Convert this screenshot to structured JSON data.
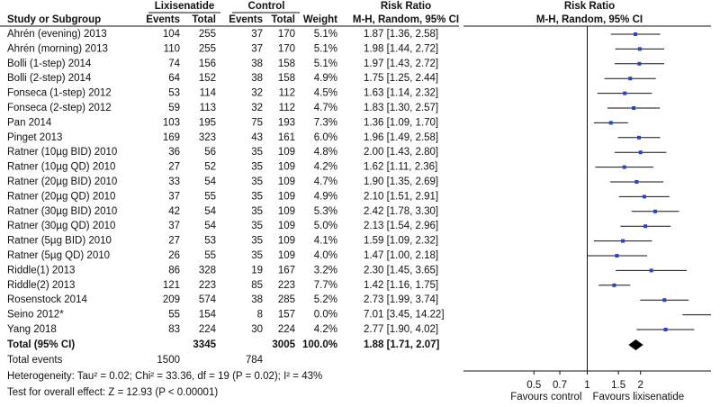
{
  "chart_data": {
    "type": "forest",
    "header_study": "Study or Subgroup",
    "group_labels": [
      "Lixisenatide",
      "Control"
    ],
    "col_labels": [
      "Events",
      "Total",
      "Events",
      "Total",
      "Weight"
    ],
    "effect_title": "Risk Ratio",
    "effect_method": "M-H, Random, 95% CI",
    "study": [
      "Ahrén (evening) 2013",
      "Ahrén (morning) 2013",
      "Bolli (1-step) 2014",
      "Bolli (2-step) 2014",
      "Fonseca (1-step) 2012",
      "Fonseca (2-step) 2012",
      "Pan 2014",
      "Pinget  2013",
      "Ratner (10µg BID) 2010",
      "Ratner (10µg QD) 2010",
      "Ratner (20µg BID) 2010",
      "Ratner (20µg QD) 2010",
      "Ratner (30µg BID) 2010",
      "Ratner (30µg QD) 2010",
      "Ratner (5µg BID) 2010",
      "Ratner (5µg QD) 2010",
      "Riddle(1) 2013",
      "Riddle(2) 2013",
      "Rosenstock 2014",
      "Seino 2012*",
      "Yang 2018"
    ],
    "lix_events": [
      104,
      110,
      74,
      64,
      53,
      59,
      103,
      169,
      36,
      27,
      33,
      37,
      42,
      37,
      27,
      26,
      86,
      121,
      209,
      55,
      83
    ],
    "lix_total": [
      255,
      255,
      156,
      152,
      114,
      113,
      195,
      323,
      56,
      52,
      54,
      55,
      54,
      54,
      53,
      55,
      328,
      223,
      574,
      154,
      224
    ],
    "ctrl_events": [
      37,
      37,
      38,
      38,
      32,
      32,
      75,
      43,
      35,
      35,
      35,
      35,
      35,
      35,
      35,
      35,
      19,
      85,
      38,
      8,
      30
    ],
    "ctrl_total": [
      170,
      170,
      158,
      158,
      112,
      112,
      193,
      161,
      109,
      109,
      109,
      109,
      109,
      109,
      109,
      109,
      167,
      223,
      285,
      157,
      224
    ],
    "weight": [
      "5.1%",
      "5.1%",
      "5.1%",
      "4.9%",
      "4.5%",
      "4.7%",
      "7.3%",
      "6.0%",
      "4.8%",
      "4.2%",
      "4.7%",
      "4.9%",
      "5.3%",
      "5.0%",
      "4.1%",
      "4.0%",
      "3.2%",
      "7.7%",
      "5.2%",
      "0.0%",
      "4.2%"
    ],
    "rr": [
      1.87,
      1.98,
      1.97,
      1.75,
      1.63,
      1.83,
      1.36,
      1.96,
      2.0,
      1.62,
      1.9,
      2.1,
      2.42,
      2.13,
      1.59,
      1.47,
      2.3,
      1.42,
      2.73,
      7.01,
      2.77
    ],
    "ci_low": [
      1.36,
      1.44,
      1.43,
      1.25,
      1.14,
      1.3,
      1.09,
      1.49,
      1.43,
      1.11,
      1.35,
      1.51,
      1.78,
      1.54,
      1.09,
      1.0,
      1.45,
      1.16,
      1.99,
      3.45,
      1.9
    ],
    "ci_high": [
      2.58,
      2.72,
      2.72,
      2.44,
      2.32,
      2.57,
      1.7,
      2.58,
      2.8,
      2.36,
      2.69,
      2.91,
      3.3,
      2.96,
      2.32,
      2.18,
      3.65,
      1.75,
      3.74,
      14.22,
      4.02
    ],
    "ci_label": [
      "1.87 [1.36, 2.58]",
      "1.98 [1.44, 2.72]",
      "1.97 [1.43, 2.72]",
      "1.75 [1.25, 2.44]",
      "1.63 [1.14, 2.32]",
      "1.83 [1.30, 2.57]",
      "1.36 [1.09, 1.70]",
      "1.96 [1.49, 2.58]",
      "2.00 [1.43, 2.80]",
      "1.62 [1.11, 2.36]",
      "1.90 [1.35, 2.69]",
      "2.10 [1.51, 2.91]",
      "2.42 [1.78, 3.30]",
      "2.13 [1.54, 2.96]",
      "1.59 [1.09, 2.32]",
      "1.47 [1.00, 2.18]",
      "2.30 [1.45, 3.65]",
      "1.42 [1.16, 1.75]",
      "2.73 [1.99, 3.74]",
      "7.01 [3.45, 14.22]",
      "2.77 [1.90, 4.02]"
    ],
    "total": {
      "label": "Total (95% CI)",
      "lix_total": 3345,
      "ctrl_total": 3005,
      "weight": "100.0%",
      "rr": 1.88,
      "ci_low": 1.71,
      "ci_high": 2.07,
      "ci_label": "1.88 [1.71, 2.07]"
    },
    "total_events": {
      "label": "Total events",
      "lix": 1500,
      "ctrl": 784
    },
    "heterogeneity": "Heterogeneity: Tau² = 0.02; Chi² = 33.36, df = 19 (P = 0.02); I² = 43%",
    "overall_test": "Test for overall effect: Z = 12.93 (P < 0.00001)",
    "log_x": true,
    "xlim": [
      0.2,
      5
    ],
    "xticks": [
      0.5,
      0.7,
      1,
      1.5,
      2
    ],
    "favours": [
      "Favours control",
      "Favours lixisenatide"
    ],
    "color": "#2346c8"
  }
}
